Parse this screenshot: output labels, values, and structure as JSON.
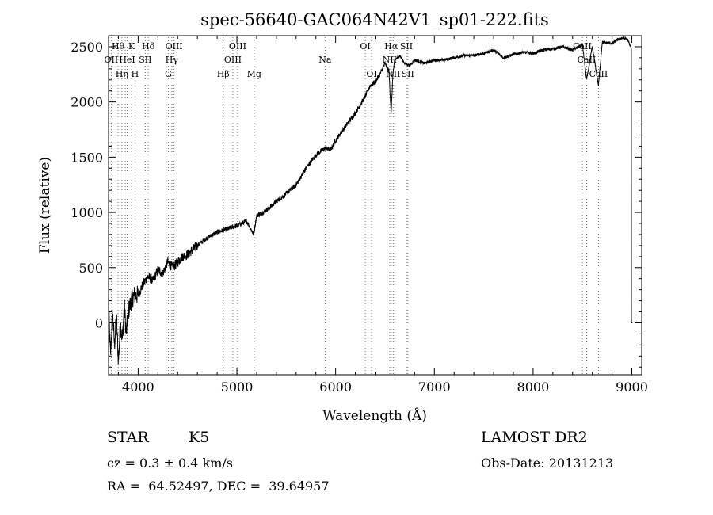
{
  "chart_data": {
    "type": "line",
    "title": "spec-56640-GAC064N42V1_sp01-222.fits",
    "xlabel": "Wavelength (Å)",
    "ylabel": "Flux (relative)",
    "xlim": [
      3700,
      9100
    ],
    "ylim": [
      -470,
      2600
    ],
    "xticks": [
      4000,
      5000,
      6000,
      7000,
      8000,
      9000
    ],
    "yticks": [
      0,
      500,
      1000,
      1500,
      2000,
      2500
    ],
    "grid": false,
    "series": [
      {
        "name": "flux",
        "x": [
          3700,
          3720,
          3740,
          3760,
          3780,
          3800,
          3820,
          3840,
          3860,
          3880,
          3900,
          3930,
          3960,
          4000,
          4050,
          4100,
          4150,
          4200,
          4250,
          4300,
          4350,
          4400,
          4450,
          4500,
          4600,
          4700,
          4800,
          4900,
          5000,
          5100,
          5170,
          5200,
          5300,
          5400,
          5500,
          5600,
          5700,
          5800,
          5890,
          5950,
          6000,
          6100,
          6200,
          6300,
          6350,
          6400,
          6450,
          6500,
          6540,
          6563,
          6580,
          6600,
          6650,
          6700,
          6750,
          6800,
          6900,
          7000,
          7100,
          7200,
          7300,
          7400,
          7500,
          7600,
          7700,
          7800,
          7900,
          8000,
          8100,
          8200,
          8300,
          8400,
          8500,
          8542,
          8600,
          8662,
          8700,
          8800,
          8850,
          8900,
          8950,
          8990,
          9000,
          9010
        ],
        "y": [
          150,
          -300,
          100,
          -200,
          50,
          -350,
          0,
          -150,
          150,
          -100,
          100,
          200,
          250,
          250,
          350,
          420,
          380,
          480,
          450,
          550,
          500,
          550,
          600,
          620,
          700,
          770,
          820,
          850,
          880,
          920,
          800,
          970,
          1020,
          1100,
          1170,
          1250,
          1400,
          1520,
          1580,
          1570,
          1650,
          1780,
          1900,
          2050,
          2150,
          2180,
          2250,
          2350,
          2280,
          1900,
          2250,
          2380,
          2420,
          2350,
          2330,
          2380,
          2350,
          2380,
          2380,
          2400,
          2420,
          2420,
          2440,
          2470,
          2400,
          2430,
          2450,
          2440,
          2470,
          2480,
          2500,
          2470,
          2520,
          2200,
          2500,
          2150,
          2540,
          2530,
          2560,
          2580,
          2570,
          2500,
          0,
          0
        ]
      }
    ],
    "lines": [
      {
        "wavelength": 3727,
        "label": "OII",
        "row": 2
      },
      {
        "wavelength": 3797,
        "label": "Hθ",
        "row": 1
      },
      {
        "wavelength": 3835,
        "label": "Hη",
        "row": 3
      },
      {
        "wavelength": 3869,
        "label": "",
        "row": 0
      },
      {
        "wavelength": 3889,
        "label": "HeI",
        "row": 2
      },
      {
        "wavelength": 3934,
        "label": "K",
        "row": 1
      },
      {
        "wavelength": 3968,
        "label": "H",
        "row": 3
      },
      {
        "wavelength": 4072,
        "label": "SII",
        "row": 2
      },
      {
        "wavelength": 4102,
        "label": "Hδ",
        "row": 1
      },
      {
        "wavelength": 4305,
        "label": "G",
        "row": 3
      },
      {
        "wavelength": 4341,
        "label": "Hγ",
        "row": 2
      },
      {
        "wavelength": 4363,
        "label": "OIII",
        "row": 1
      },
      {
        "wavelength": 4861,
        "label": "Hβ",
        "row": 3
      },
      {
        "wavelength": 4959,
        "label": "OIII",
        "row": 2
      },
      {
        "wavelength": 5007,
        "label": "OIII",
        "row": 1
      },
      {
        "wavelength": 5175,
        "label": "Mg",
        "row": 3
      },
      {
        "wavelength": 5893,
        "label": "Na",
        "row": 2
      },
      {
        "wavelength": 6300,
        "label": "OI",
        "row": 1
      },
      {
        "wavelength": 6364,
        "label": "OI",
        "row": 3
      },
      {
        "wavelength": 6548,
        "label": "NII",
        "row": 2
      },
      {
        "wavelength": 6563,
        "label": "Hα",
        "row": 1
      },
      {
        "wavelength": 6583,
        "label": "NII",
        "row": 3
      },
      {
        "wavelength": 6717,
        "label": "SII",
        "row": 1
      },
      {
        "wavelength": 6731,
        "label": "SII",
        "row": 3
      },
      {
        "wavelength": 8498,
        "label": "CaII",
        "row": 1
      },
      {
        "wavelength": 8542,
        "label": "CaII",
        "row": 2
      },
      {
        "wavelength": 8662,
        "label": "CaII",
        "row": 3
      }
    ]
  },
  "info": {
    "class_label": "STAR",
    "subclass": "K5",
    "survey": "LAMOST DR2",
    "cz_line": "cz = 0.3 ± 0.4 km/s",
    "obs_date_line": "Obs-Date: 20131213",
    "coords_line": "RA =  64.52497, DEC =  39.64957"
  }
}
